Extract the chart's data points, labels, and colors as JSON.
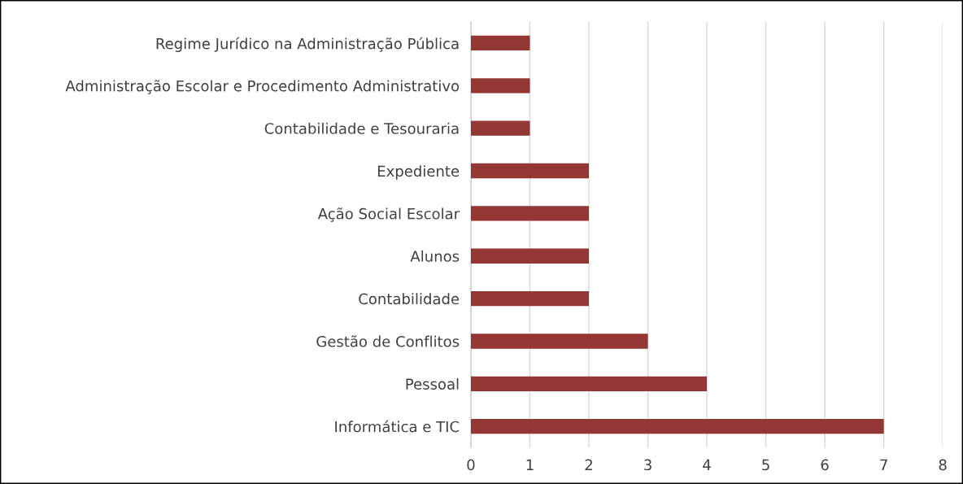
{
  "chart_data": {
    "type": "bar",
    "orientation": "horizontal",
    "categories": [
      "Regime Jurídico na Administração Pública",
      "Administração Escolar e Procedimento Administrativo",
      "Contabilidade e Tesouraria",
      "Expediente",
      "Ação Social Escolar",
      "Alunos",
      "Contabilidade",
      "Gestão de Conflitos",
      "Pessoal",
      "Informática e TIC"
    ],
    "values": [
      1,
      1,
      1,
      2,
      2,
      2,
      2,
      3,
      4,
      7
    ],
    "color": "#943634",
    "xlim": [
      0,
      8
    ],
    "xticks": [
      0,
      1,
      2,
      3,
      4,
      5,
      6,
      7,
      8
    ],
    "grid": "x"
  }
}
